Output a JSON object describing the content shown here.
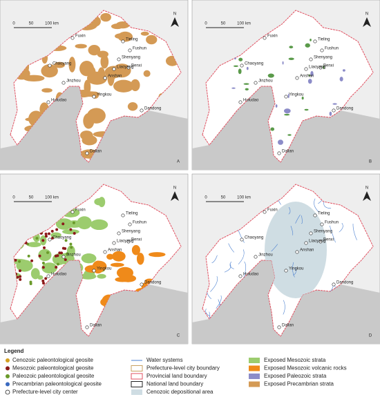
{
  "panels": [
    "A",
    "B",
    "C",
    "D"
  ],
  "cities": [
    "Tieling",
    "Fushun",
    "Shenyang",
    "Benxi",
    "Liaoyang",
    "Anshan",
    "Fuxin",
    "Chaoyang",
    "Jinzhou",
    "Huludao",
    "Yingkou",
    "Dandong",
    "Dalian"
  ],
  "scale_bar": [
    "0",
    "50",
    "100 km"
  ],
  "north": "N",
  "legend": {
    "title": "Legend",
    "columns": [
      [
        "Cenozoic paleontological geosite",
        "Mesozoic paleontological geosite",
        "Paleozoic paleontological geosite",
        "Precambrian paleontological geosite",
        "Prefecture-level city center"
      ],
      [
        "Water systems",
        "Prefecture-level city boundary",
        "Provincial land boundary",
        "National land boundary",
        "Cenozoic depositional area"
      ],
      [
        "Exposed Mesozoic strata",
        "Exposed Mesozoic volcanic rocks",
        "Exposed Paleozoic strata",
        "Exposed Precambrian strata"
      ]
    ]
  }
}
